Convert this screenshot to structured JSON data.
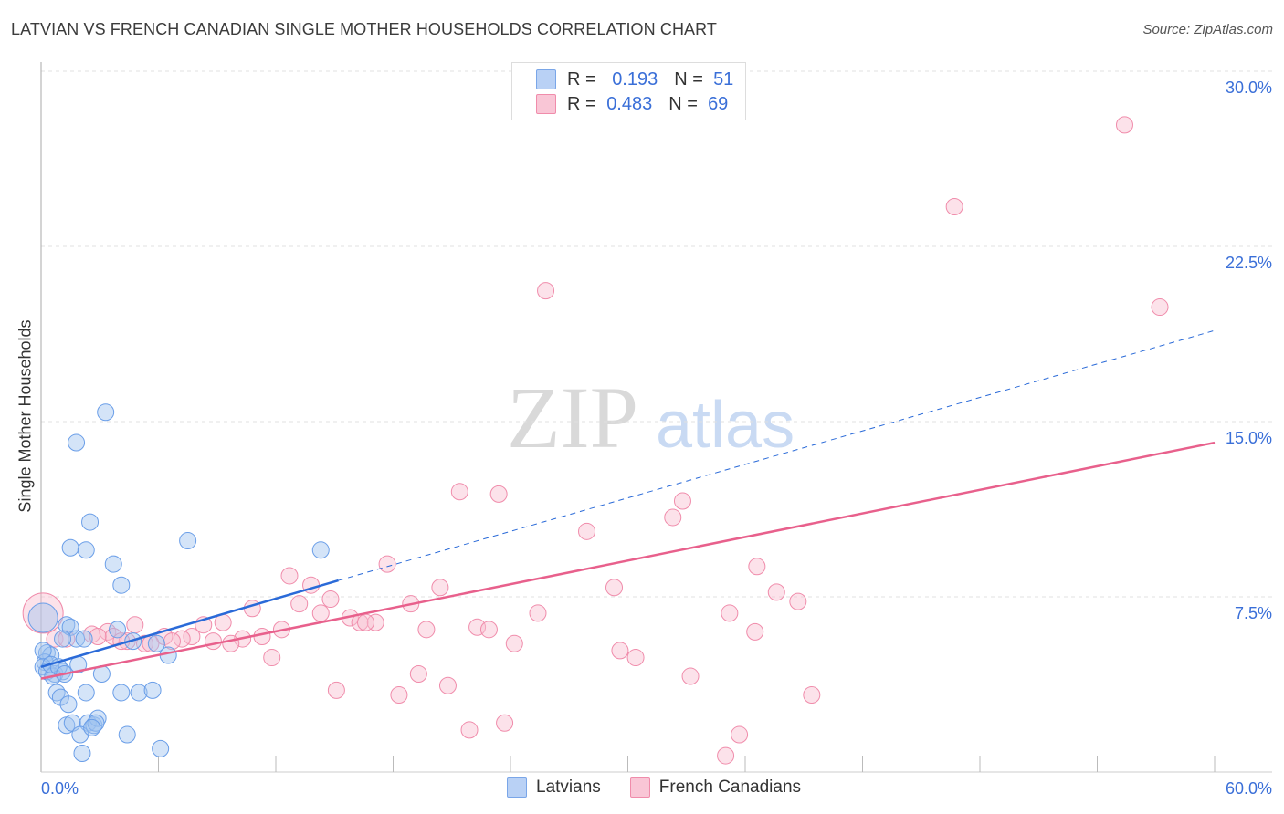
{
  "title": "LATVIAN VS FRENCH CANADIAN SINGLE MOTHER HOUSEHOLDS CORRELATION CHART",
  "source": "Source: ZipAtlas.com",
  "watermark": "ZIPatlas",
  "legend": {
    "r_label": "R =",
    "n_label": "N =",
    "rows": [
      {
        "r": "0.193",
        "n": "51"
      },
      {
        "r": "0.483",
        "n": "69"
      }
    ]
  },
  "chart_data": {
    "type": "scatter",
    "title": "LATVIAN VS FRENCH CANADIAN SINGLE MOTHER HOUSEHOLDS CORRELATION CHART",
    "xlabel": "",
    "ylabel": "Single Mother Households",
    "xlim": [
      0,
      60
    ],
    "ylim": [
      0,
      31
    ],
    "x_tick_labels": [
      "0.0%",
      "60.0%"
    ],
    "y_ticks": [
      7.5,
      15,
      22.5,
      30
    ],
    "y_tick_labels": [
      "7.5%",
      "15.0%",
      "22.5%",
      "30.0%"
    ],
    "grid": true,
    "legend_placement": "top-center",
    "series": [
      {
        "name": "Latvians",
        "color": "#6a9ee8",
        "line_color": "#2a6ad8",
        "trend": {
          "solid": [
            [
              0,
              4.5
            ],
            [
              15.2,
              8.2
            ]
          ],
          "dashed": [
            [
              15.2,
              8.2
            ],
            [
              60,
              18.9
            ]
          ]
        },
        "points": [
          [
            0.1,
            6.6
          ],
          [
            3.3,
            15.4
          ],
          [
            1.8,
            14.1
          ],
          [
            2.5,
            10.7
          ],
          [
            1.5,
            9.6
          ],
          [
            2.3,
            9.5
          ],
          [
            3.7,
            8.9
          ],
          [
            4.1,
            8.0
          ],
          [
            7.5,
            9.9
          ],
          [
            14.3,
            9.5
          ],
          [
            1.3,
            6.3
          ],
          [
            1.5,
            6.2
          ],
          [
            1.8,
            5.7
          ],
          [
            1.1,
            5.7
          ],
          [
            3.9,
            6.1
          ],
          [
            4.7,
            5.6
          ],
          [
            5.9,
            5.5
          ],
          [
            6.5,
            5.0
          ],
          [
            0.3,
            5.1
          ],
          [
            0.5,
            5.0
          ],
          [
            0.2,
            4.7
          ],
          [
            0.1,
            4.5
          ],
          [
            0.3,
            4.3
          ],
          [
            0.7,
            4.2
          ],
          [
            1.1,
            4.3
          ],
          [
            0.6,
            4.1
          ],
          [
            1.9,
            4.6
          ],
          [
            3.1,
            4.2
          ],
          [
            0.8,
            3.4
          ],
          [
            1.0,
            3.2
          ],
          [
            1.4,
            2.9
          ],
          [
            2.3,
            3.4
          ],
          [
            4.1,
            3.4
          ],
          [
            5.0,
            3.4
          ],
          [
            5.7,
            3.5
          ],
          [
            1.3,
            2.0
          ],
          [
            1.6,
            2.1
          ],
          [
            2.4,
            2.1
          ],
          [
            2.7,
            2.0
          ],
          [
            2.9,
            2.3
          ],
          [
            2.0,
            1.6
          ],
          [
            4.4,
            1.6
          ],
          [
            2.1,
            0.8
          ],
          [
            6.1,
            1.0
          ],
          [
            2.8,
            2.1
          ],
          [
            0.1,
            5.2
          ],
          [
            0.5,
            4.6
          ],
          [
            0.9,
            4.5
          ],
          [
            2.2,
            5.7
          ],
          [
            1.2,
            4.2
          ],
          [
            2.6,
            1.9
          ]
        ]
      },
      {
        "name": "French Canadians",
        "color": "#f08cab",
        "line_color": "#e8608c",
        "trend": {
          "solid": [
            [
              0,
              4.0
            ],
            [
              60,
              14.1
            ]
          ]
        },
        "points": [
          [
            55.4,
            27.7
          ],
          [
            46.7,
            24.2
          ],
          [
            57.2,
            19.9
          ],
          [
            25.8,
            20.6
          ],
          [
            21.4,
            12.0
          ],
          [
            23.4,
            11.9
          ],
          [
            32.8,
            11.6
          ],
          [
            32.3,
            10.9
          ],
          [
            27.9,
            10.3
          ],
          [
            17.7,
            8.9
          ],
          [
            36.6,
            8.8
          ],
          [
            12.7,
            8.4
          ],
          [
            13.8,
            8.0
          ],
          [
            20.4,
            7.9
          ],
          [
            29.3,
            7.9
          ],
          [
            37.6,
            7.7
          ],
          [
            14.8,
            7.4
          ],
          [
            13.2,
            7.2
          ],
          [
            18.9,
            7.2
          ],
          [
            38.7,
            7.3
          ],
          [
            10.8,
            7.0
          ],
          [
            14.3,
            6.8
          ],
          [
            25.4,
            6.8
          ],
          [
            35.2,
            6.8
          ],
          [
            15.8,
            6.6
          ],
          [
            16.3,
            6.4
          ],
          [
            17.1,
            6.4
          ],
          [
            16.6,
            6.4
          ],
          [
            9.3,
            6.4
          ],
          [
            8.3,
            6.3
          ],
          [
            4.8,
            6.3
          ],
          [
            22.3,
            6.2
          ],
          [
            12.3,
            6.1
          ],
          [
            19.7,
            6.1
          ],
          [
            22.9,
            6.1
          ],
          [
            36.5,
            6.0
          ],
          [
            6.3,
            5.8
          ],
          [
            7.7,
            5.8
          ],
          [
            7.2,
            5.7
          ],
          [
            11.3,
            5.8
          ],
          [
            10.3,
            5.7
          ],
          [
            8.8,
            5.6
          ],
          [
            9.7,
            5.5
          ],
          [
            6.7,
            5.6
          ],
          [
            2.6,
            5.9
          ],
          [
            3.4,
            6.0
          ],
          [
            3.7,
            5.8
          ],
          [
            4.4,
            5.6
          ],
          [
            5.3,
            5.5
          ],
          [
            0.7,
            5.7
          ],
          [
            24.2,
            5.5
          ],
          [
            29.6,
            5.2
          ],
          [
            30.4,
            4.9
          ],
          [
            11.8,
            4.9
          ],
          [
            19.3,
            4.2
          ],
          [
            33.2,
            4.1
          ],
          [
            20.8,
            3.7
          ],
          [
            15.1,
            3.5
          ],
          [
            18.3,
            3.3
          ],
          [
            39.4,
            3.3
          ],
          [
            23.7,
            2.1
          ],
          [
            21.9,
            1.8
          ],
          [
            35.7,
            1.6
          ],
          [
            35.0,
            0.7
          ],
          [
            0.1,
            6.8
          ],
          [
            2.9,
            5.8
          ],
          [
            5.6,
            5.5
          ],
          [
            1.3,
            5.7
          ],
          [
            4.1,
            5.6
          ]
        ]
      }
    ]
  }
}
